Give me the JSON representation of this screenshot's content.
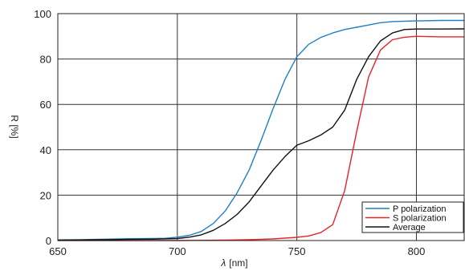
{
  "chart_data": {
    "type": "line",
    "xlabel_symbol": "λ",
    "xlabel_unit": "[nm]",
    "ylabel": "R [%]",
    "xlim": [
      650,
      820
    ],
    "ylim": [
      0,
      100
    ],
    "x_ticks": [
      650,
      700,
      750,
      800
    ],
    "y_ticks": [
      0,
      20,
      40,
      60,
      80,
      100
    ],
    "grid": true,
    "legend_position": "bottom-right",
    "series": [
      {
        "name": "P polarization",
        "color": "#1f7fc4",
        "points": [
          [
            650,
            0.3
          ],
          [
            660,
            0.4
          ],
          [
            670,
            0.6
          ],
          [
            680,
            0.8
          ],
          [
            690,
            0.9
          ],
          [
            695,
            1.0
          ],
          [
            700,
            1.5
          ],
          [
            705,
            2.3
          ],
          [
            710,
            4.0
          ],
          [
            715,
            7.5
          ],
          [
            720,
            13
          ],
          [
            725,
            21
          ],
          [
            730,
            31
          ],
          [
            735,
            44
          ],
          [
            740,
            58
          ],
          [
            745,
            71
          ],
          [
            750,
            81
          ],
          [
            755,
            86.5
          ],
          [
            760,
            89.5
          ],
          [
            765,
            91.5
          ],
          [
            770,
            93
          ],
          [
            775,
            94
          ],
          [
            780,
            95
          ],
          [
            785,
            96
          ],
          [
            790,
            96.5
          ],
          [
            800,
            96.8
          ],
          [
            810,
            97
          ],
          [
            820,
            97
          ]
        ]
      },
      {
        "name": "S polarization",
        "color": "#e8232a",
        "points": [
          [
            650,
            0
          ],
          [
            700,
            0
          ],
          [
            720,
            0.2
          ],
          [
            730,
            0.4
          ],
          [
            740,
            0.7
          ],
          [
            750,
            1.4
          ],
          [
            755,
            2
          ],
          [
            760,
            3.5
          ],
          [
            765,
            7
          ],
          [
            770,
            22
          ],
          [
            775,
            48
          ],
          [
            780,
            72
          ],
          [
            785,
            84
          ],
          [
            790,
            88.5
          ],
          [
            795,
            89.6
          ],
          [
            800,
            90
          ],
          [
            810,
            89.8
          ],
          [
            820,
            89.8
          ]
        ]
      },
      {
        "name": "Average",
        "color": "#111111",
        "points": [
          [
            650,
            0.2
          ],
          [
            660,
            0.3
          ],
          [
            670,
            0.4
          ],
          [
            680,
            0.5
          ],
          [
            690,
            0.6
          ],
          [
            700,
            0.9
          ],
          [
            705,
            1.5
          ],
          [
            710,
            2.5
          ],
          [
            715,
            4.5
          ],
          [
            720,
            7.5
          ],
          [
            725,
            11.5
          ],
          [
            730,
            17
          ],
          [
            735,
            24
          ],
          [
            740,
            31
          ],
          [
            745,
            37
          ],
          [
            750,
            42
          ],
          [
            755,
            44
          ],
          [
            760,
            46.5
          ],
          [
            765,
            50
          ],
          [
            770,
            57.5
          ],
          [
            775,
            71
          ],
          [
            780,
            81
          ],
          [
            785,
            88
          ],
          [
            790,
            91.5
          ],
          [
            795,
            93
          ],
          [
            800,
            93.2
          ],
          [
            810,
            93.2
          ],
          [
            820,
            93.3
          ]
        ]
      }
    ]
  }
}
